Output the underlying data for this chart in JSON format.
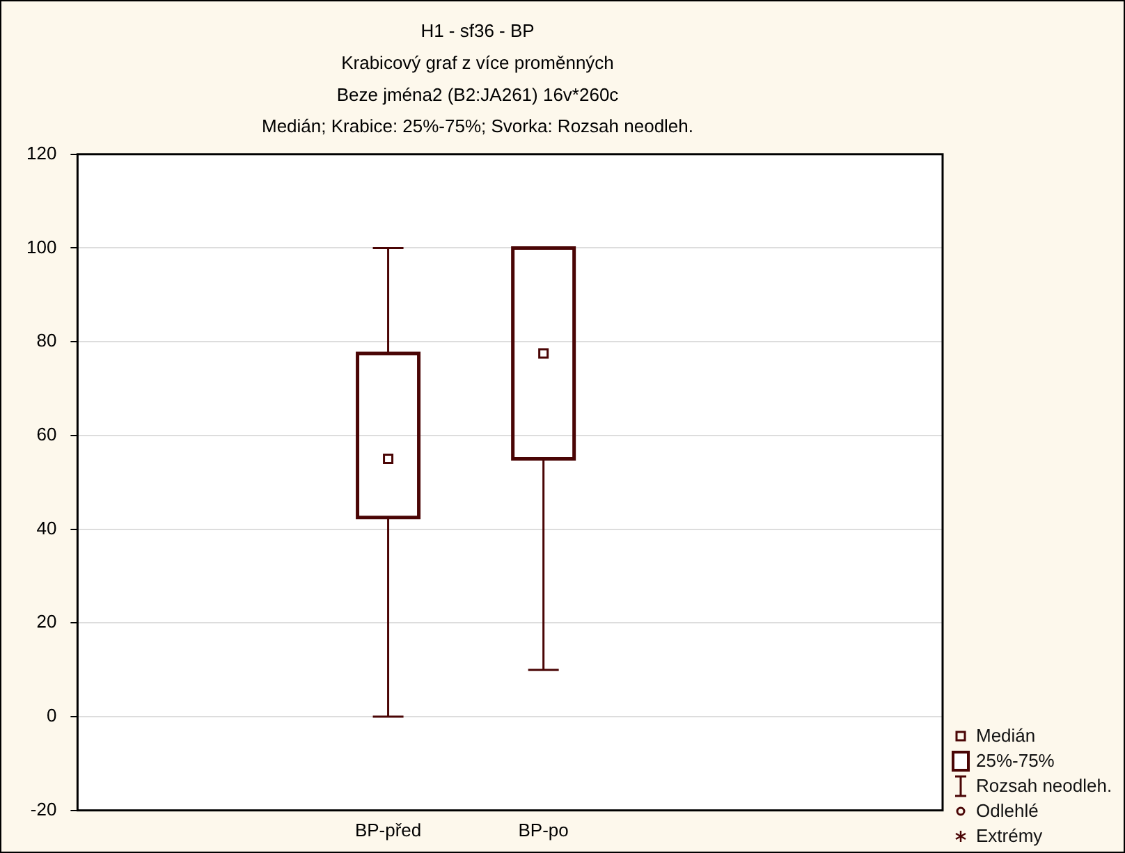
{
  "chart_data": {
    "type": "box",
    "title": "H1 - sf36 - BP",
    "subtitle": "Krabicový graf z více proměnných\nBeze jména2 (B2:JA261) 16v*260c\nMedián; Krabice: 25%-75%; Svorka: Rozsah neodleh.",
    "categories": [
      "BP-před",
      "BP-po"
    ],
    "series": [
      {
        "color": "#4a0505",
        "boxes": [
          {
            "low": 0,
            "q1": 42.5,
            "median": 55,
            "q3": 77.5,
            "high": 100
          },
          {
            "low": 10,
            "q1": 55,
            "median": 77.5,
            "q3": 100,
            "high": 100
          }
        ]
      }
    ],
    "ylim": [
      -20,
      120
    ],
    "yticks": [
      -20,
      0,
      20,
      40,
      60,
      80,
      100,
      120
    ],
    "grid": "y",
    "marker": "square",
    "annotations": [
      "Medián",
      "25%-75%",
      "Rozsah neodleh.",
      "Odlehlé",
      "Extrémy"
    ]
  }
}
